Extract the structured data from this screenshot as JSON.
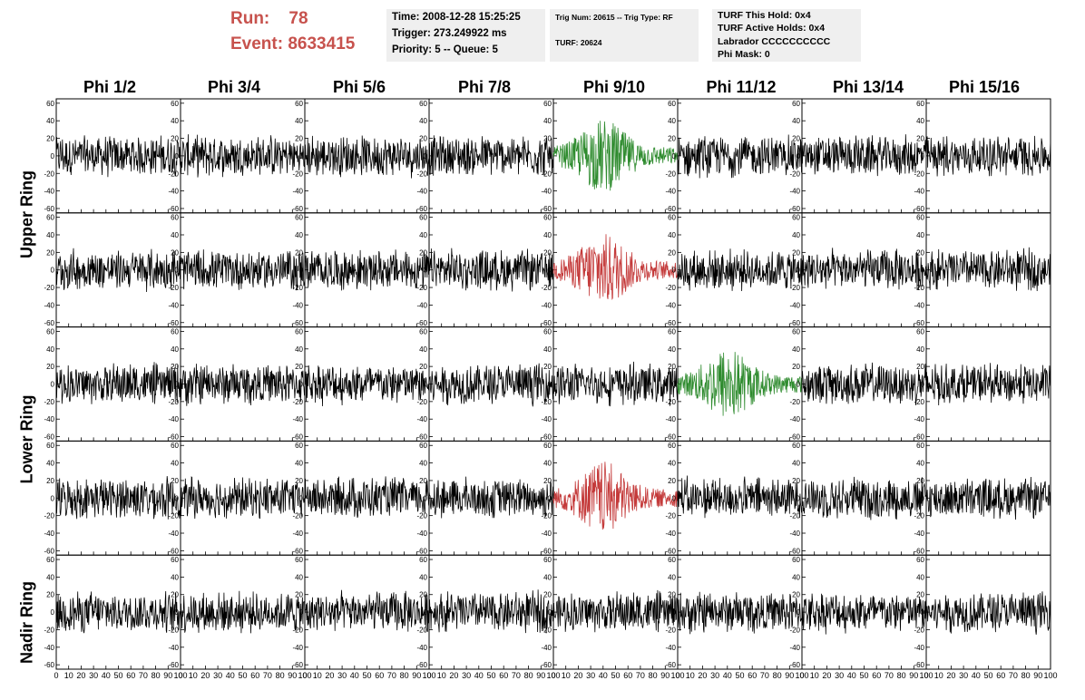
{
  "run": {
    "label": "Run:",
    "value": "78"
  },
  "event": {
    "label": "Event:",
    "value": "8633415"
  },
  "info1": {
    "time": "Time: 2008-12-28 15:25:25",
    "trigger": "Trigger: 273.249922 ms",
    "priority": "Priority: 5 -- Queue: 5"
  },
  "info2": {
    "trig": "Trig Num: 20615 -- Trig Type: RF",
    "turf": "TURF: 20624"
  },
  "info3": {
    "hold": "TURF This Hold: 0x4",
    "active": "TURF Active Holds: 0x4",
    "labrador": "Labrador CCCCCCCCCC",
    "phimask": "Phi Mask: 0"
  },
  "phi_labels": [
    "Phi 1/2",
    "Phi 3/4",
    "Phi 5/6",
    "Phi 7/8",
    "Phi 9/10",
    "Phi 11/12",
    "Phi 13/14",
    "Phi 15/16"
  ],
  "ring_labels": [
    "Upper Ring",
    "Lower Ring",
    "Nadir Ring"
  ],
  "colors": {
    "normal": "#000000",
    "triggered_green": "#2e8b2e",
    "triggered_red": "#c43a3a",
    "title_red": "#c7524d"
  },
  "chart_data": {
    "type": "line",
    "rows": 5,
    "cols": 8,
    "ylim": [
      -65,
      65
    ],
    "y_ticks": [
      -60,
      -40,
      -20,
      0,
      20,
      40,
      60
    ],
    "xlim": [
      0,
      100
    ],
    "x_ticks": [
      0,
      10,
      20,
      30,
      40,
      50,
      60,
      70,
      80,
      90,
      100
    ],
    "highlighted_panels": [
      {
        "row": 0,
        "col": 4,
        "color": "green"
      },
      {
        "row": 1,
        "col": 4,
        "color": "red"
      },
      {
        "row": 2,
        "col": 5,
        "color": "green"
      },
      {
        "row": 3,
        "col": 4,
        "color": "red"
      }
    ],
    "note_amplitude": "noise traces ~±25, highlighted pulses up to ~±45"
  }
}
